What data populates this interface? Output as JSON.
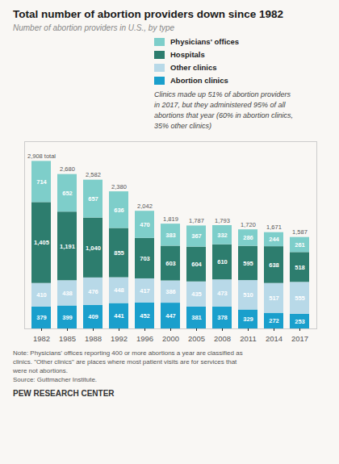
{
  "chart_data": {
    "type": "bar",
    "stacked": true,
    "title": "Total number of abortion providers down since 1982",
    "subtitle": "Number of abortion providers in U.S., by type",
    "categories": [
      "1982",
      "1985",
      "1988",
      "1992",
      "1996",
      "2000",
      "2005",
      "2008",
      "2011",
      "2014",
      "2017"
    ],
    "series": [
      {
        "name": "Abortion clinics",
        "color": "#1a9fcc",
        "values": [
          379,
          399,
          409,
          441,
          452,
          447,
          381,
          378,
          329,
          272,
          253
        ],
        "value_labels": [
          "379",
          "399",
          "409",
          "441",
          "452",
          "447",
          "381",
          "378",
          "329",
          "272",
          "253"
        ]
      },
      {
        "name": "Other clinics",
        "color": "#b8d9e8",
        "values": [
          410,
          438,
          476,
          448,
          417,
          386,
          435,
          473,
          510,
          517,
          555
        ],
        "value_labels": [
          "410",
          "438",
          "476",
          "448",
          "417",
          "386",
          "435",
          "473",
          "510",
          "517",
          "555"
        ]
      },
      {
        "name": "Hospitals",
        "color": "#2d7d6e",
        "values": [
          1405,
          1191,
          1040,
          855,
          703,
          603,
          604,
          610,
          595,
          638,
          518
        ],
        "value_labels": [
          "1,405",
          "1,191",
          "1,040",
          "855",
          "703",
          "603",
          "604",
          "610",
          "595",
          "638",
          "518"
        ]
      },
      {
        "name": "Physicians' offices",
        "color": "#7ececa",
        "values": [
          714,
          652,
          657,
          636,
          470,
          383,
          367,
          332,
          286,
          244,
          261
        ],
        "value_labels": [
          "714",
          "652",
          "657",
          "636",
          "470",
          "383",
          "367",
          "332",
          "286",
          "244",
          "261"
        ]
      }
    ],
    "totals": [
      2908,
      2680,
      2582,
      2380,
      2042,
      1819,
      1787,
      1793,
      1720,
      1671,
      1587
    ],
    "total_labels": [
      "2,908 total",
      "2,680",
      "2,582",
      "2,380",
      "2,042",
      "1,819",
      "1,787",
      "1,793",
      "1,720",
      "1,671",
      "1,587"
    ],
    "ylim": [
      0,
      3250
    ],
    "tick_labels": "x",
    "data_labels": true,
    "grid": false,
    "legend": "right",
    "annotation": "Clinics made up 51% of abortion providers\nin 2017, but they administered 95% of all\nabortions that year (60% in abortion clinics,\n35% other clinics)",
    "note": "Note: Physicians' offices reporting 400 or more abortions a year are classified as\nclinics. \"Other clinics\" are places where most patient visits are for services that\nwere not abortions.\nSource: Guttmacher Institute.",
    "source": "PEW RESEARCH CENTER"
  }
}
